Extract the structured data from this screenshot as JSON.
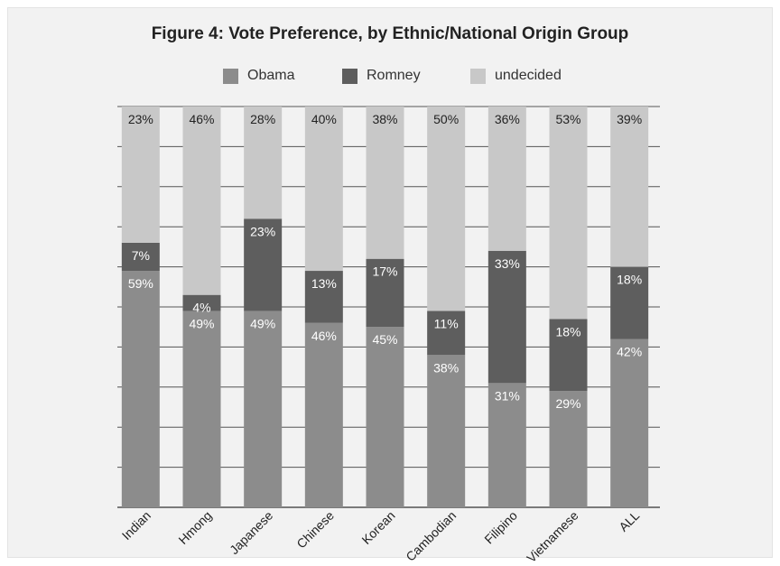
{
  "title": "Figure 4: Vote Preference, by Ethnic/National Origin Group",
  "chart_data": {
    "type": "bar",
    "stacked": true,
    "title": "Figure 4: Vote Preference, by Ethnic/National Origin Group",
    "categories": [
      "Indian",
      "Hmong",
      "Japanese",
      "Chinese",
      "Korean",
      "Cambodian",
      "Filipino",
      "Vietnamese",
      "ALL"
    ],
    "series": [
      {
        "name": "Obama",
        "color": "#8c8c8c",
        "values": [
          59,
          49,
          49,
          46,
          45,
          38,
          31,
          29,
          42
        ]
      },
      {
        "name": "Romney",
        "color": "#5e5e5e",
        "values": [
          7,
          4,
          23,
          13,
          17,
          11,
          33,
          18,
          18
        ]
      },
      {
        "name": "undecided",
        "color": "#c8c8c8",
        "values": [
          23,
          46,
          28,
          40,
          38,
          50,
          36,
          53,
          39
        ]
      }
    ],
    "data_labels": [
      [
        "59%",
        "49%",
        "49%",
        "46%",
        "45%",
        "38%",
        "31%",
        "29%",
        "42%"
      ],
      [
        "7%",
        "4%",
        "23%",
        "13%",
        "17%",
        "11%",
        "33%",
        "18%",
        "18%"
      ],
      [
        "23%",
        "46%",
        "28%",
        "40%",
        "38%",
        "50%",
        "36%",
        "53%",
        "39%"
      ]
    ],
    "xlabel": "",
    "ylabel": "",
    "ylim": [
      0,
      100
    ],
    "grid": true,
    "legend": "top"
  }
}
